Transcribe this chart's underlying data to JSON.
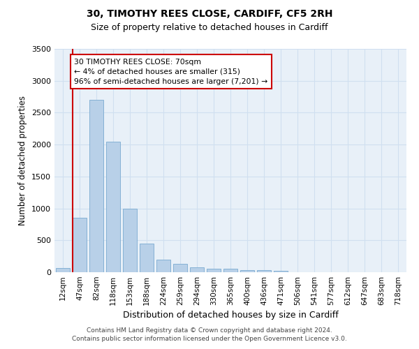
{
  "title1": "30, TIMOTHY REES CLOSE, CARDIFF, CF5 2RH",
  "title2": "Size of property relative to detached houses in Cardiff",
  "xlabel": "Distribution of detached houses by size in Cardiff",
  "ylabel": "Number of detached properties",
  "categories": [
    "12sqm",
    "47sqm",
    "82sqm",
    "118sqm",
    "153sqm",
    "188sqm",
    "224sqm",
    "259sqm",
    "294sqm",
    "330sqm",
    "365sqm",
    "400sqm",
    "436sqm",
    "471sqm",
    "506sqm",
    "541sqm",
    "577sqm",
    "612sqm",
    "647sqm",
    "683sqm",
    "718sqm"
  ],
  "values": [
    70,
    850,
    2700,
    2050,
    1000,
    450,
    200,
    130,
    75,
    55,
    55,
    35,
    30,
    20,
    5,
    3,
    2,
    1,
    1,
    0,
    0
  ],
  "bar_color": "#b8d0e8",
  "bar_edge_color": "#7aaad0",
  "grid_color": "#d0dff0",
  "background_color": "#e8f0f8",
  "vline_color": "#cc0000",
  "annotation_text": "30 TIMOTHY REES CLOSE: 70sqm\n← 4% of detached houses are smaller (315)\n96% of semi-detached houses are larger (7,201) →",
  "annotation_box_color": "#ffffff",
  "annotation_border_color": "#cc0000",
  "footer1": "Contains HM Land Registry data © Crown copyright and database right 2024.",
  "footer2": "Contains public sector information licensed under the Open Government Licence v3.0.",
  "ylim": [
    0,
    3500
  ],
  "yticks": [
    0,
    500,
    1000,
    1500,
    2000,
    2500,
    3000,
    3500
  ]
}
